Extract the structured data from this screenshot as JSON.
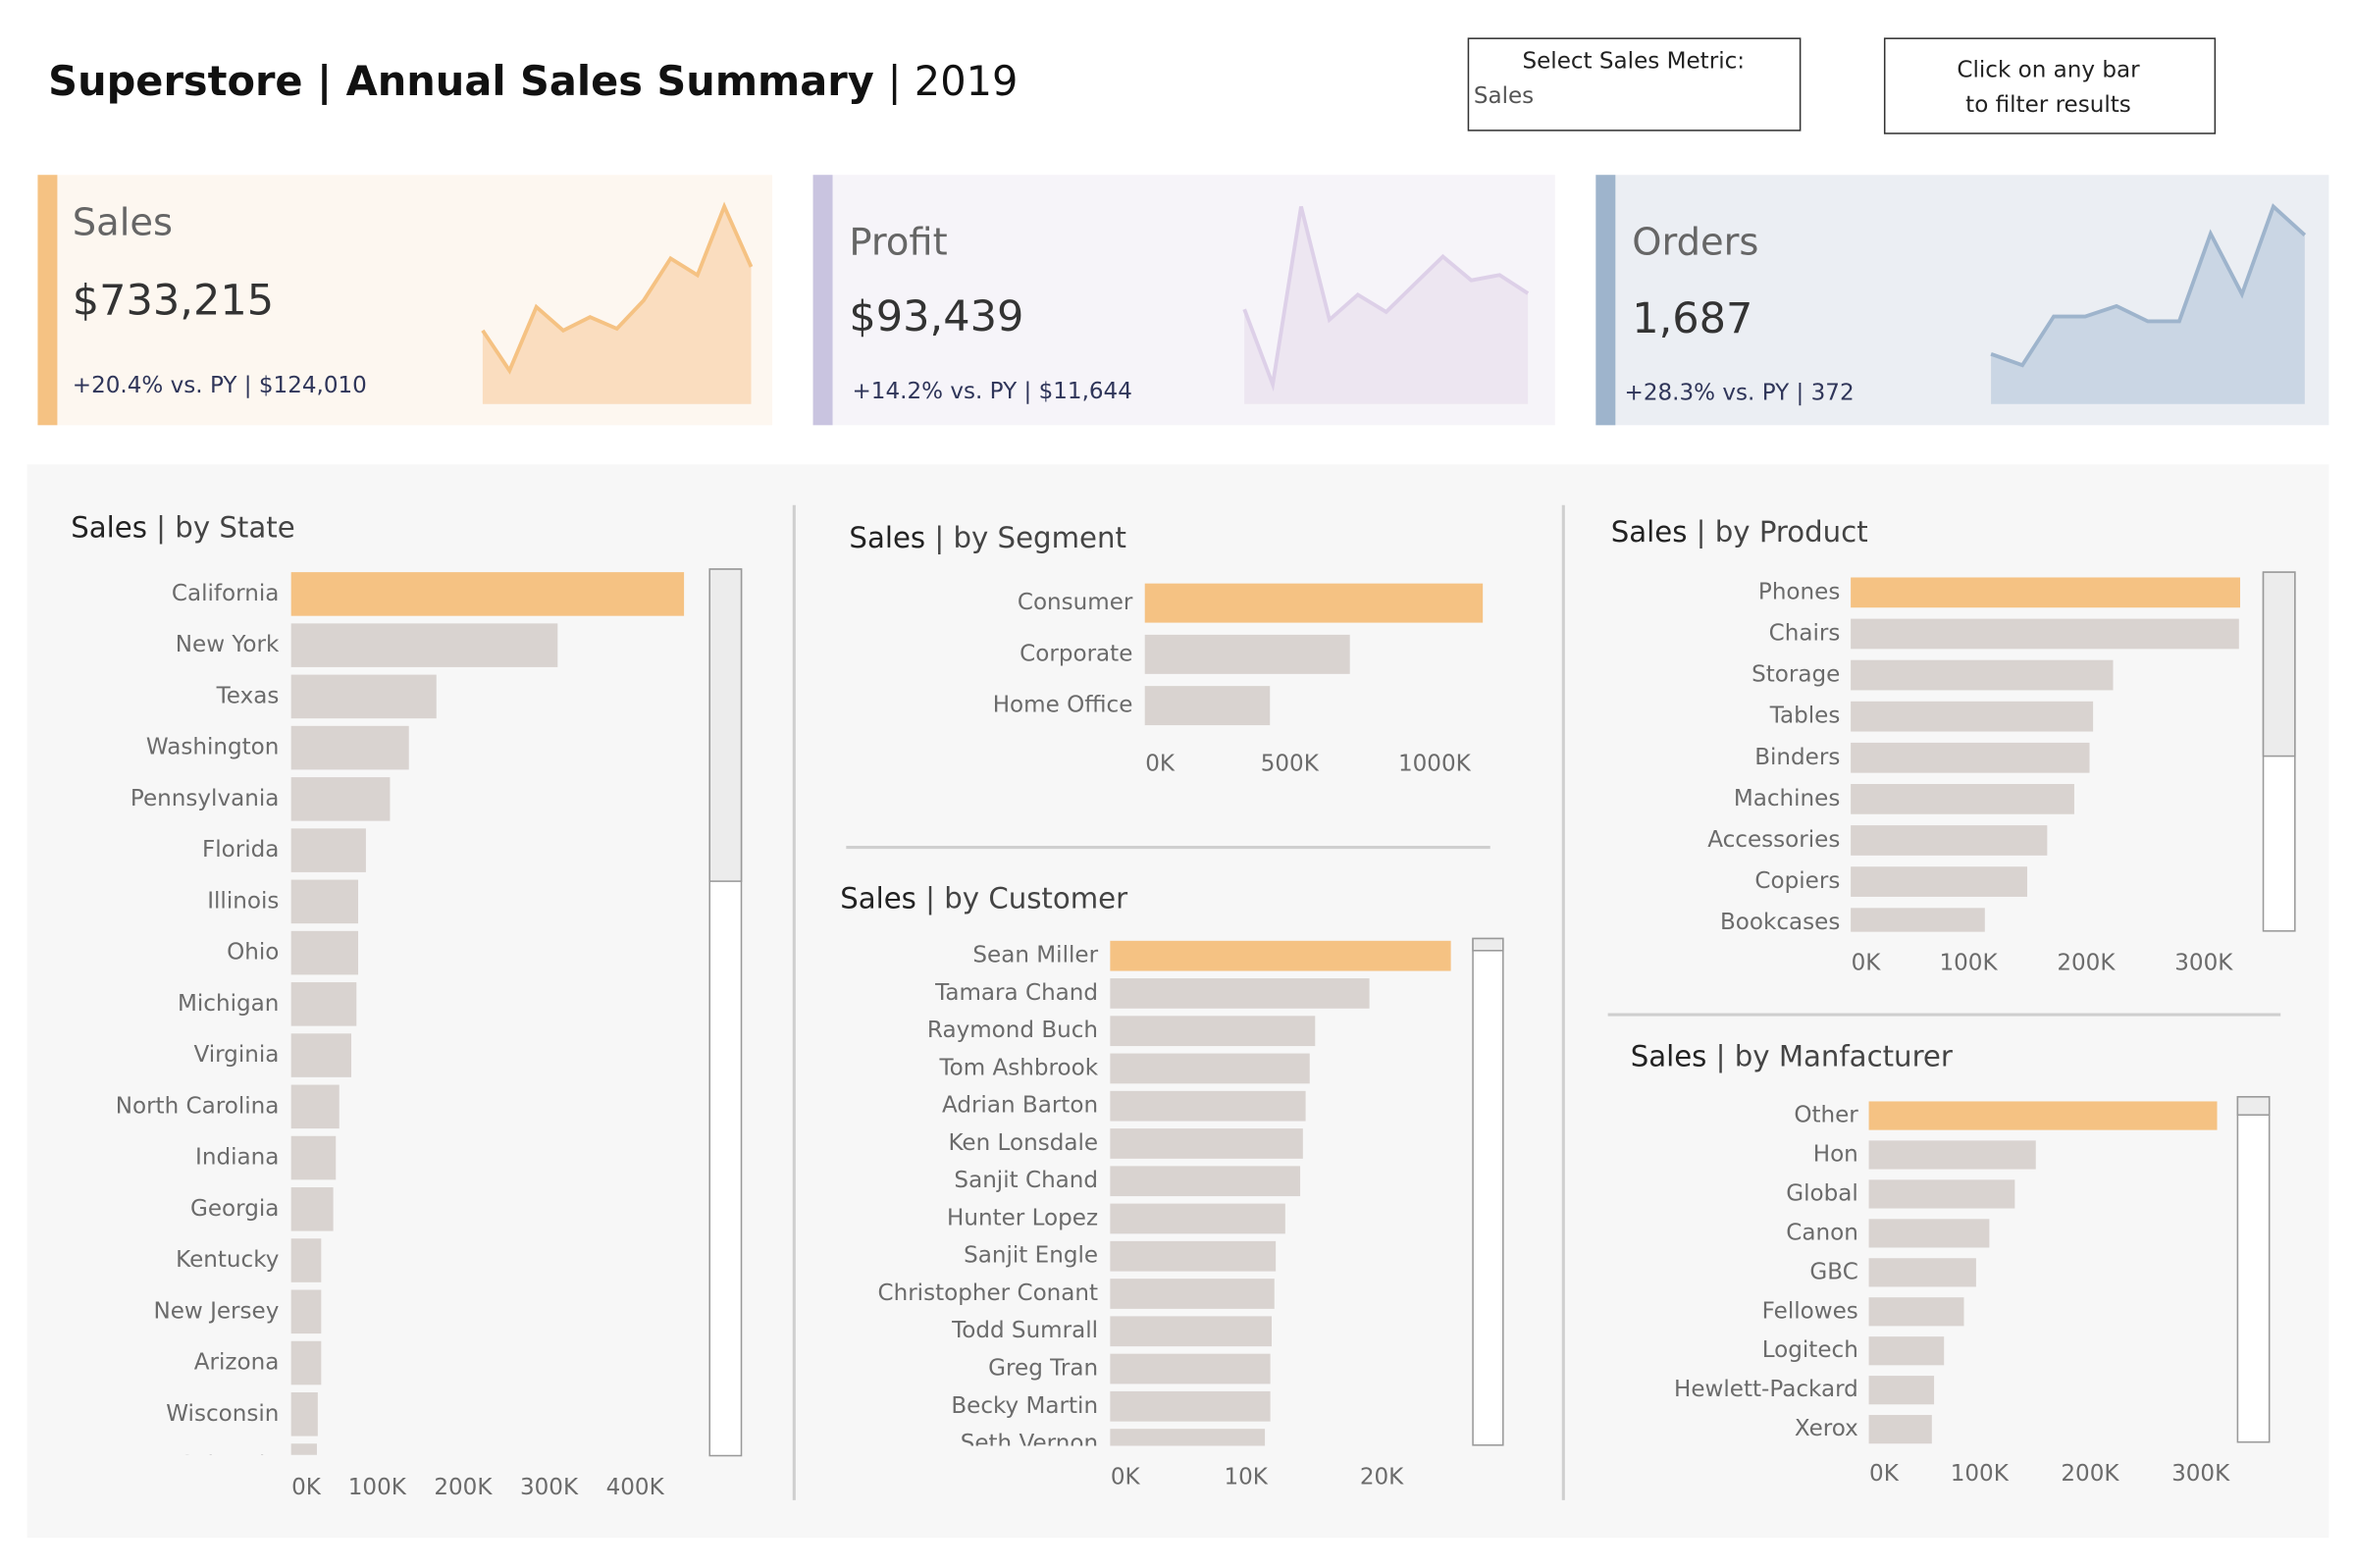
{
  "header": {
    "title": "Superstore | Annual Sales Summary",
    "year_label": "| 2019"
  },
  "controls": {
    "metric_label": "Select Sales Metric:",
    "metric_value": "Sales",
    "hint": [
      "Click on any bar",
      "to filter results"
    ]
  },
  "kpis": [
    {
      "label": "Sales",
      "value": "$733,215",
      "comparison": "+20.4% vs. PY | $124,010",
      "accent": "#f5c283",
      "background": "#fdf7f0",
      "fill": "#f9d8b6",
      "line": "#f5c283",
      "trend": [
        44000,
        20000,
        58000,
        44000,
        52000,
        45000,
        62000,
        87000,
        77000,
        118000,
        82000
      ]
    },
    {
      "label": "Profit",
      "value": "$93,439",
      "comparison": "+14.2% vs. PY | $11,644",
      "accent": "#c9c4e0",
      "background": "#f6f4f9",
      "fill": "#ebe3f0",
      "line": "#ddd0e8",
      "trend": [
        7200,
        1500,
        15000,
        6400,
        8300,
        7000,
        9100,
        11200,
        9400,
        9800,
        8400
      ]
    },
    {
      "label": "Orders",
      "value": "1,687",
      "comparison": "+28.3% vs. PY | 372",
      "accent": "#9eb4cc",
      "background": "#ebeef3",
      "fill": "#c4d1e0",
      "line": "#9eb4cc",
      "trend": [
        72,
        56,
        126,
        126,
        141,
        119,
        119,
        245,
        158,
        284,
        243
      ]
    }
  ],
  "chart_data": [
    {
      "type": "bar",
      "metric": "Sales",
      "title": "| by State",
      "color": "#d9d3d0",
      "top_color": "#f5c283",
      "categories": [
        "California",
        "New York",
        "Texas",
        "Washington",
        "Pennsylvania",
        "Florida",
        "Illinois",
        "Ohio",
        "Michigan",
        "Virginia",
        "North Carolina",
        "Indiana",
        "Georgia",
        "Kentucky",
        "New Jersey",
        "Arizona",
        "Wisconsin",
        "Colorado"
      ],
      "values": [
        457000,
        310000,
        169000,
        137000,
        115000,
        87000,
        78000,
        78000,
        76000,
        70000,
        56000,
        52000,
        49000,
        35000,
        35000,
        35000,
        31000,
        30000
      ],
      "xlim": [
        0,
        460000
      ],
      "xticks": [
        {
          "value": 0,
          "label": "0K"
        },
        {
          "value": 100000,
          "label": "100K"
        },
        {
          "value": 200000,
          "label": "200K"
        },
        {
          "value": 300000,
          "label": "300K"
        },
        {
          "value": 400000,
          "label": "400K"
        }
      ]
    },
    {
      "type": "bar",
      "metric": "Sales",
      "title": "| by Segment",
      "color": "#d9d3d0",
      "top_color": "#f5c283",
      "categories": [
        "Consumer",
        "Corporate",
        "Home Office"
      ],
      "values": [
        1167000,
        708000,
        432000
      ],
      "xlim": [
        0,
        1200000
      ],
      "xticks": [
        {
          "value": 0,
          "label": "0K"
        },
        {
          "value": 500000,
          "label": "500K"
        },
        {
          "value": 1000000,
          "label": "1000K"
        }
      ]
    },
    {
      "type": "bar",
      "metric": "Sales",
      "title": "| by Customer",
      "color": "#d9d3d0",
      "top_color": "#f5c283",
      "categories": [
        "Sean Miller",
        "Tamara Chand",
        "Raymond Buch",
        "Tom Ashbrook",
        "Adrian Barton",
        "Ken Lonsdale",
        "Sanjit Chand",
        "Hunter Lopez",
        "Sanjit Engle",
        "Christopher Conant",
        "Todd Sumrall",
        "Greg Tran",
        "Becky Martin",
        "Seth Vernon"
      ],
      "values": [
        25100,
        19100,
        15100,
        14700,
        14400,
        14200,
        14000,
        12900,
        12200,
        12100,
        11900,
        11800,
        11800,
        11400
      ],
      "xlim": [
        0,
        26000
      ],
      "xticks": [
        {
          "value": 0,
          "label": "0K"
        },
        {
          "value": 10000,
          "label": "10K"
        },
        {
          "value": 20000,
          "label": "20K"
        }
      ]
    },
    {
      "type": "bar",
      "metric": "Sales",
      "title": "| by Product",
      "color": "#d9d3d0",
      "top_color": "#f5c283",
      "categories": [
        "Phones",
        "Chairs",
        "Storage",
        "Tables",
        "Binders",
        "Machines",
        "Accessories",
        "Copiers",
        "Bookcases"
      ],
      "values": [
        331000,
        330000,
        223000,
        206000,
        203000,
        190000,
        167000,
        150000,
        114000
      ],
      "xlim": [
        0,
        340000
      ],
      "xticks": [
        {
          "value": 0,
          "label": "0K"
        },
        {
          "value": 100000,
          "label": "100K"
        },
        {
          "value": 200000,
          "label": "200K"
        },
        {
          "value": 300000,
          "label": "300K"
        }
      ]
    },
    {
      "type": "bar",
      "metric": "Sales",
      "title": "| by Manfacturer",
      "color": "#d9d3d0",
      "top_color": "#f5c283",
      "categories": [
        "Other",
        "Hon",
        "Global",
        "Canon",
        "GBC",
        "Fellowes",
        "Logitech",
        "Hewlett-Packard",
        "Xerox"
      ],
      "values": [
        315000,
        151000,
        132000,
        109000,
        97000,
        86000,
        68000,
        59000,
        57000
      ],
      "xlim": [
        0,
        320000
      ],
      "xticks": [
        {
          "value": 0,
          "label": "0K"
        },
        {
          "value": 100000,
          "label": "100K"
        },
        {
          "value": 200000,
          "label": "200K"
        },
        {
          "value": 300000,
          "label": "300K"
        }
      ]
    }
  ]
}
